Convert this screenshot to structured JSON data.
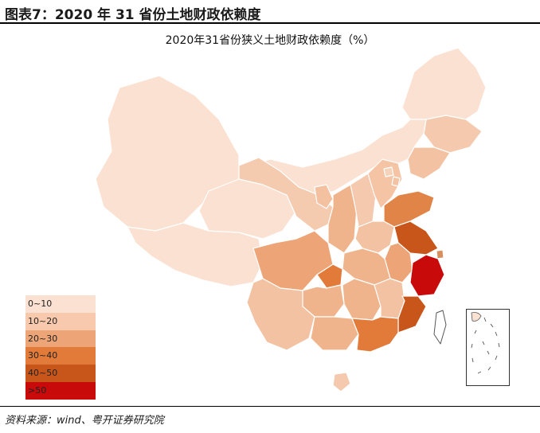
{
  "figure_title": "图表7：2020 年 31 省份土地财政依赖度",
  "map_title": "2020年31省份狭义土地财政依赖度（%）",
  "source": "资料来源：wind、粤开证券研究院",
  "legend": [
    {
      "label": "0~10",
      "color": "#fbe1d2"
    },
    {
      "label": "10~20",
      "color": "#f8c9ac"
    },
    {
      "label": "20~30",
      "color": "#eda577"
    },
    {
      "label": "30~40",
      "color": "#e27b3a"
    },
    {
      "label": "40~50",
      "color": "#c8561b"
    },
    {
      "label": ">50",
      "color": "#c90a0a"
    }
  ]
}
